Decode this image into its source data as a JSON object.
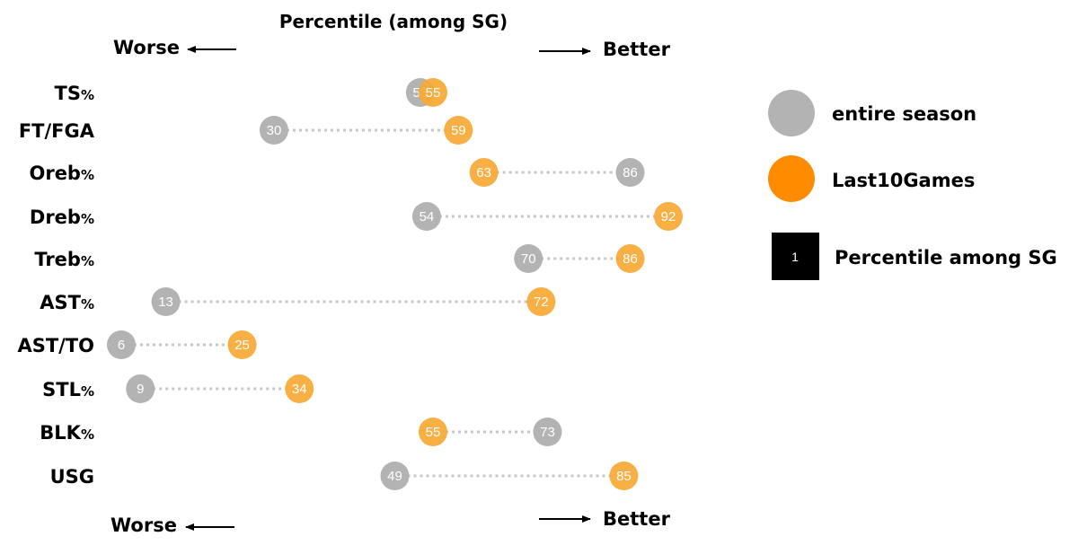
{
  "chart_data": {
    "type": "scatter",
    "title": "Percentile (among SG)",
    "direction_labels": {
      "worse": "Worse",
      "better": "Better"
    },
    "categories": [
      "TS%",
      "FT/FGA",
      "Oreb%",
      "Dreb%",
      "Treb%",
      "AST%",
      "AST/TO",
      "STL%",
      "BLK%",
      "USG"
    ],
    "series": [
      {
        "name": "entire season",
        "color": "#b3b3b3",
        "values": [
          53,
          30,
          86,
          54,
          70,
          13,
          6,
          9,
          73,
          49
        ]
      },
      {
        "name": "Last10Games",
        "color": "#f7a935",
        "values": [
          55,
          59,
          63,
          92,
          86,
          72,
          25,
          34,
          55,
          85
        ]
      }
    ],
    "xlim": [
      6,
      92
    ],
    "legend": {
      "placement": "right",
      "entries": [
        "entire season",
        "Last10Games"
      ],
      "sample_value": "1",
      "sample_label": "Percentile among SG",
      "entire_season_swatch": "#b3b3b3",
      "last10_swatch": "#ff8c00",
      "sample_swatch": "#000000"
    },
    "connector_color": "#c8c8c8"
  }
}
